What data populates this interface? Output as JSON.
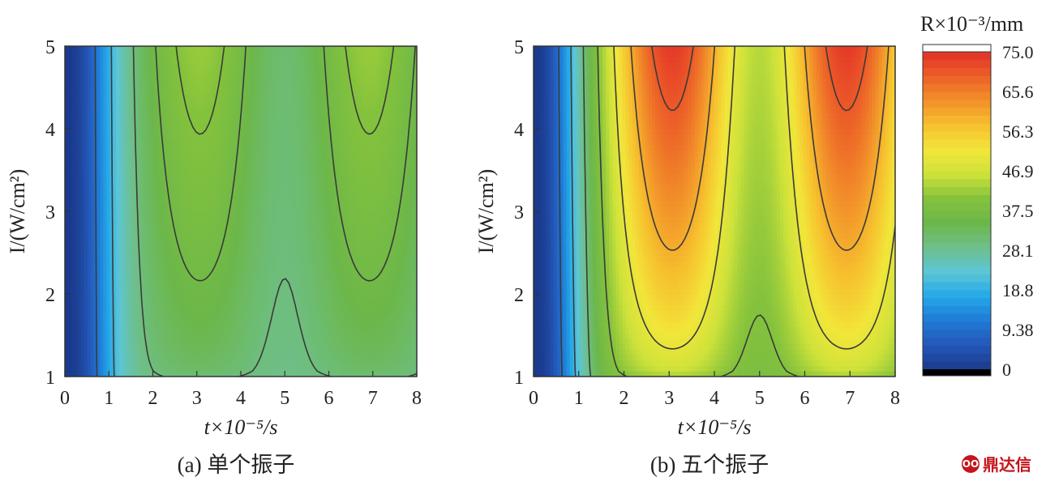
{
  "chart_data": [
    {
      "type": "heatmap",
      "subtype": "filled contour",
      "caption": "(a) 单个振子",
      "xlabel": "t×10⁻⁵/s",
      "ylabel": "I/(W/cm²)",
      "xlim": [
        0,
        8
      ],
      "ylim": [
        1,
        5
      ],
      "xticks": [
        "0",
        "1",
        "2",
        "3",
        "4",
        "5",
        "6",
        "7",
        "8"
      ],
      "yticks": [
        "1",
        "2",
        "3",
        "4",
        "5"
      ],
      "contour_levels": [
        10,
        20,
        30,
        36,
        40
      ],
      "summary_values": {
        "R_at_t0": 0,
        "R_max_near_t3_t7_I5": 42,
        "R_local_min_at_t5_I1": 29
      }
    },
    {
      "type": "heatmap",
      "subtype": "filled contour",
      "caption": "(b) 五个振子",
      "xlabel": "t×10⁻⁵/s",
      "ylabel": "I/(W/cm²)",
      "xlim": [
        0,
        8
      ],
      "ylim": [
        1,
        5
      ],
      "xticks": [
        "0",
        "1",
        "2",
        "3",
        "4",
        "5",
        "6",
        "7",
        "8"
      ],
      "yticks": [
        "1",
        "2",
        "3",
        "4",
        "5"
      ],
      "contour_levels": [
        10,
        20,
        30,
        40,
        50,
        60,
        70
      ],
      "summary_values": {
        "R_at_t0": 0,
        "R_max_near_t3_t7_I5": 74,
        "R_local_min_at_t5_I1": 38
      }
    }
  ],
  "colorbar": {
    "title": "R×10⁻³/mm",
    "min": 0,
    "max": 75.0,
    "ticks": [
      "75.0",
      "65.6",
      "56.3",
      "46.9",
      "37.5",
      "28.1",
      "18.8",
      "9.38",
      "0"
    ],
    "stops": [
      "#1a3a8c",
      "#2457b8",
      "#1f7ad6",
      "#24a8e8",
      "#5dc6d6",
      "#6ebf8a",
      "#6cb74a",
      "#84c23c",
      "#cde23a",
      "#f2e63a",
      "#f6c12e",
      "#f2912a",
      "#ec6028",
      "#e33228",
      "#ffffff"
    ]
  },
  "watermark": {
    "badge": "OO",
    "text": "鼎达信"
  }
}
